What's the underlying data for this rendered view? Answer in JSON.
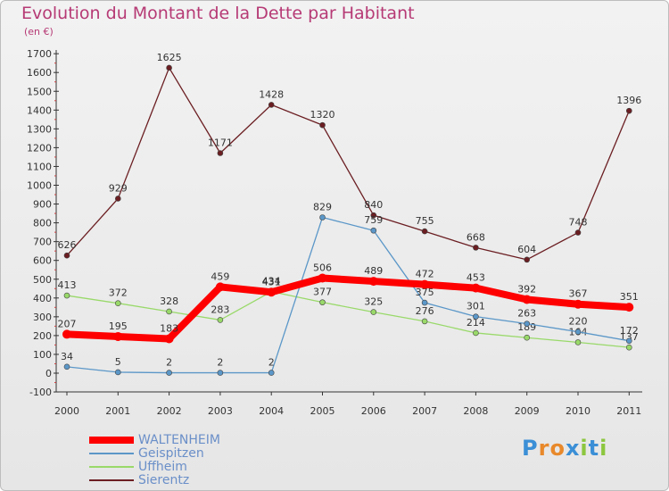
{
  "chart_data": {
    "type": "line",
    "title": "Evolution du Montant de la Dette par Habitant",
    "subtitle": "(en €)",
    "x": [
      "2000",
      "2001",
      "2002",
      "2003",
      "2004",
      "2005",
      "2006",
      "2007",
      "2008",
      "2009",
      "2010",
      "2011"
    ],
    "ylim": [
      -100,
      1700
    ],
    "yticks": [
      -100,
      0,
      100,
      200,
      300,
      400,
      500,
      600,
      700,
      800,
      900,
      1000,
      1100,
      1200,
      1300,
      1400,
      1500,
      1600,
      1700
    ],
    "grid": false,
    "legend_position": "bottom-left",
    "series": [
      {
        "name": "Sierentz",
        "color": "#6b1e22",
        "values": [
          626,
          929,
          1625,
          1171,
          1428,
          1320,
          840,
          755,
          668,
          604,
          748,
          1396
        ]
      },
      {
        "name": "Uffheim",
        "color": "#99d96a",
        "values": [
          413,
          372,
          328,
          283,
          434,
          377,
          325,
          276,
          214,
          189,
          164,
          137
        ]
      },
      {
        "name": "Geispitzen",
        "color": "#5b97c8",
        "values": [
          34,
          5,
          2,
          2,
          2,
          829,
          759,
          375,
          301,
          263,
          220,
          172
        ]
      },
      {
        "name": "WALTENHEIM",
        "color": "#ff0000",
        "values": [
          207,
          195,
          183,
          459,
          431,
          506,
          489,
          472,
          453,
          392,
          367,
          351
        ]
      }
    ],
    "legend_order": [
      "WALTENHEIM",
      "Geispitzen",
      "Uffheim",
      "Sierentz"
    ]
  },
  "logo": {
    "text": "Proxiti",
    "colors": [
      "#3b8fd6",
      "#e8892b",
      "#e8892b",
      "#3b8fd6",
      "#8cc63f",
      "#3b8fd6",
      "#8cc63f"
    ]
  }
}
